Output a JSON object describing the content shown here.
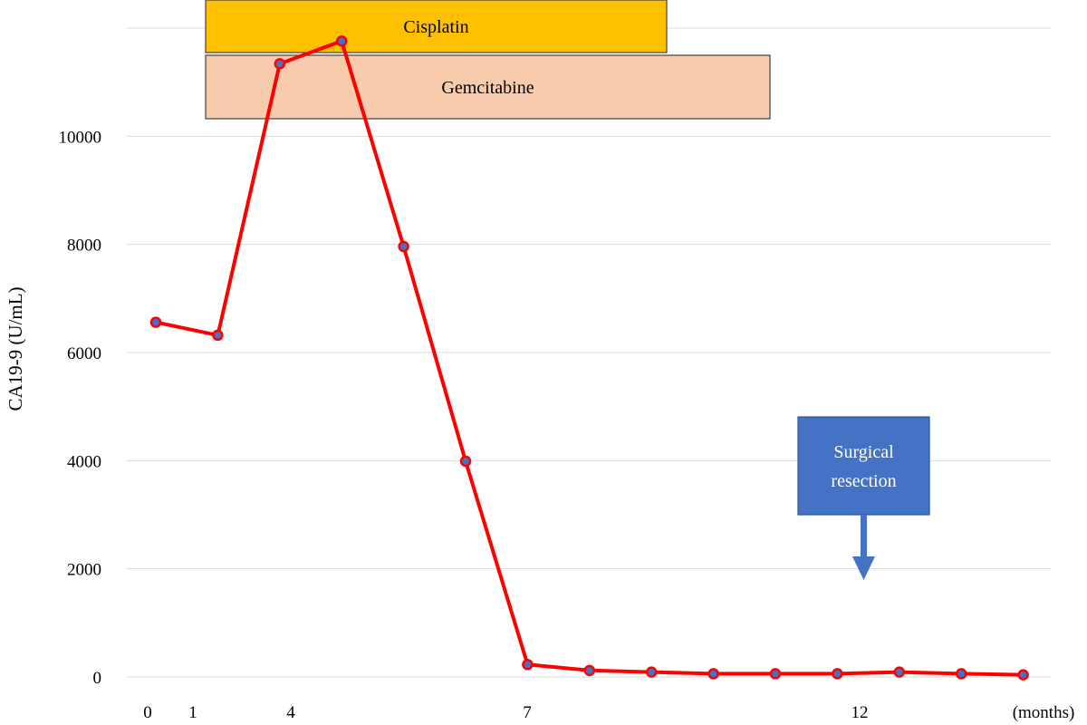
{
  "chart_data": {
    "type": "line",
    "ylabel": "CA19-9 (U/mL)",
    "xlabel": "",
    "x_unit_label": "(months)",
    "x_tick_labels": [
      {
        "x": 0,
        "label": "0"
      },
      {
        "x": 1,
        "label": "1"
      },
      {
        "x": 4,
        "label": "4"
      },
      {
        "x": 7,
        "label": "7"
      },
      {
        "x": 12,
        "label": "12"
      }
    ],
    "ylim": [
      0,
      12000
    ],
    "y_ticks": [
      0,
      2000,
      4000,
      6000,
      8000,
      10000
    ],
    "grid": true,
    "series": [
      {
        "color": "#ff0000",
        "marker_color": "#4472c4",
        "points": [
          {
            "x": 0,
            "y": 6560
          },
          {
            "x": 1,
            "y": 6320
          },
          {
            "x": 2,
            "y": 11340
          },
          {
            "x": 3,
            "y": 11760
          },
          {
            "x": 4,
            "y": 7960
          },
          {
            "x": 5,
            "y": 3990
          },
          {
            "x": 6,
            "y": 230
          },
          {
            "x": 7,
            "y": 120
          },
          {
            "x": 8,
            "y": 90
          },
          {
            "x": 9,
            "y": 60
          },
          {
            "x": 10,
            "y": 60
          },
          {
            "x": 11,
            "y": 60
          },
          {
            "x": 12,
            "y": 90
          },
          {
            "x": 13,
            "y": 60
          },
          {
            "x": 14,
            "y": 40
          }
        ]
      }
    ],
    "treatment_bars": [
      {
        "label": "Cisplatin",
        "color": "#ffc000",
        "start": 1,
        "end": 9
      },
      {
        "label": "Gemcitabine",
        "color": "#f8cbad",
        "start": 1,
        "end": 11
      }
    ],
    "annotation": {
      "label_line1": "Surgical",
      "label_line2": "resection",
      "x": 12,
      "color": "#4472c4"
    }
  }
}
